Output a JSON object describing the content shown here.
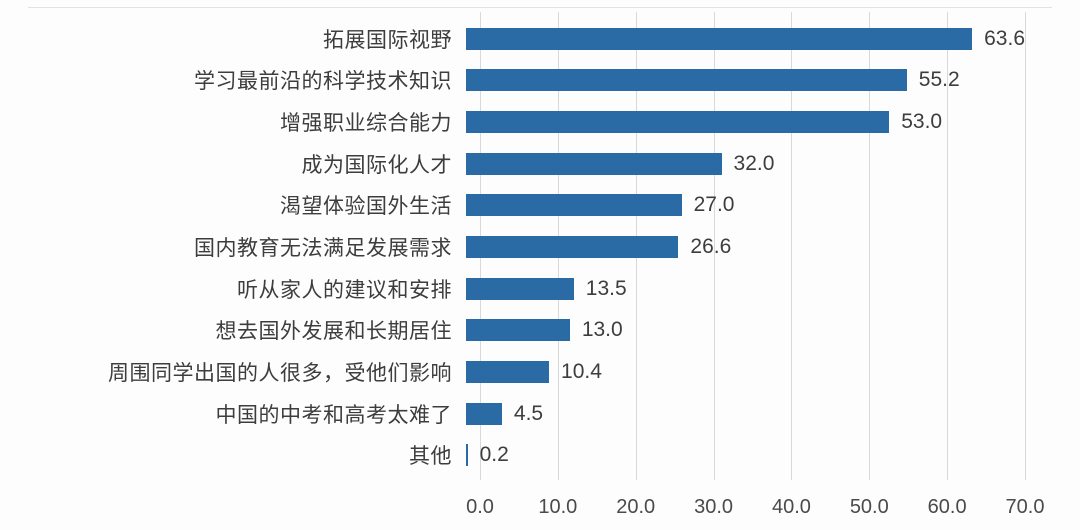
{
  "chart_data": {
    "type": "bar",
    "orientation": "horizontal",
    "title": "",
    "xlabel": "",
    "ylabel": "",
    "categories": [
      "拓展国际视野",
      "学习最前沿的科学技术知识",
      "增强职业综合能力",
      "成为国际化人才",
      "渴望体验国外生活",
      "国内教育无法满足发展需求",
      "听从家人的建议和安排",
      "想去国外发展和长期居住",
      "周围同学出国的人很多，受他们影响",
      "中国的中考和高考太难了",
      "其他"
    ],
    "values": [
      63.6,
      55.2,
      53.0,
      32.0,
      27.0,
      26.6,
      13.5,
      13.0,
      10.4,
      4.5,
      0.2
    ],
    "value_labels": [
      "63.6",
      "55.2",
      "53.0",
      "32.0",
      "27.0",
      "26.6",
      "13.5",
      "13.0",
      "10.4",
      "4.5",
      "0.2"
    ],
    "x_ticks": [
      "0.0",
      "10.0",
      "20.0",
      "30.0",
      "40.0",
      "50.0",
      "60.0",
      "70.0"
    ],
    "xlim": [
      0,
      70
    ],
    "grid": "vertical",
    "legend": null,
    "bar_color": "#2a6ba6",
    "gridline_color": "#d9d9d9",
    "text_color": "#3d3d3d"
  }
}
